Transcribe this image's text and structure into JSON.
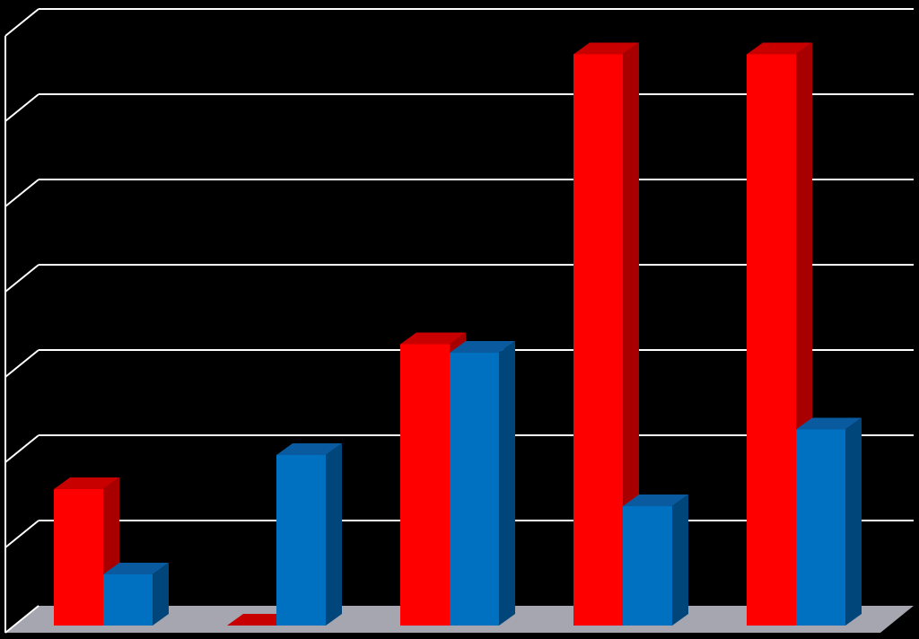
{
  "chart_data": {
    "type": "bar",
    "style": "3d-clustered-column",
    "title": "",
    "xlabel": "",
    "ylabel": "",
    "categories": [
      "",
      "",
      "",
      "",
      ""
    ],
    "ylim": [
      0,
      7
    ],
    "grid": true,
    "legend": "none",
    "series": [
      {
        "color": "#ff0000",
        "side_color": "#a80000",
        "top_color": "#c80000",
        "values": [
          1.6,
          0,
          3.3,
          6.7,
          6.7
        ]
      },
      {
        "color": "#0070c0",
        "side_color": "#00467a",
        "top_color": "#0a5aa0",
        "values": [
          0.6,
          2.0,
          3.2,
          1.4,
          2.3
        ]
      }
    ],
    "colors": {
      "background": "#000000",
      "gridline": "#ffffff",
      "floor": "#a6a6b0"
    }
  }
}
